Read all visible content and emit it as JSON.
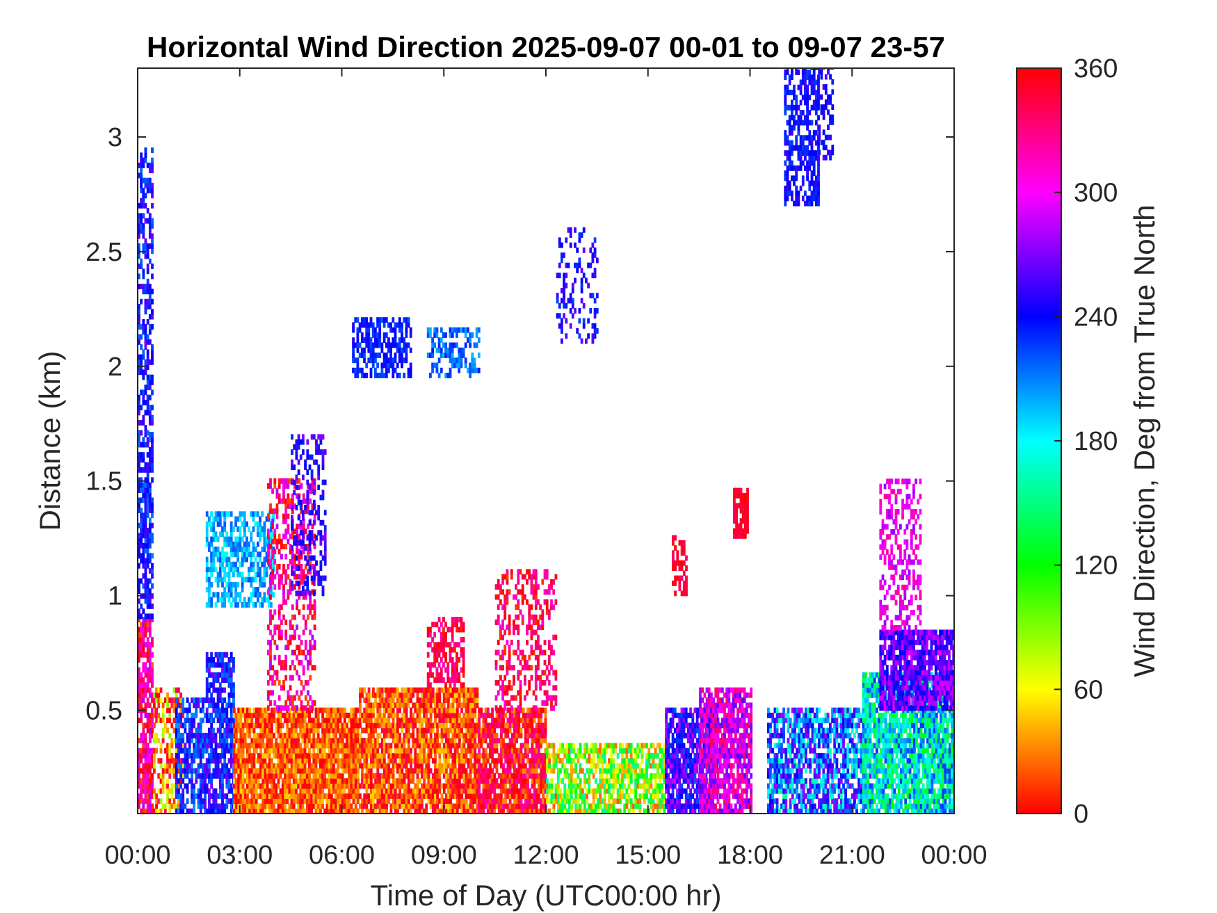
{
  "chart_data": {
    "type": "heatmap",
    "title": "Horizontal Wind Direction 2025-09-07 00-01 to 09-07 23-57",
    "xlabel": "Time of Day (UTC00:00 hr)",
    "ylabel": "Distance (km)",
    "colorbar_label": "Wind Direction, Deg from True North",
    "x_ticks": [
      "00:00",
      "03:00",
      "06:00",
      "09:00",
      "12:00",
      "15:00",
      "18:00",
      "21:00",
      "00:00"
    ],
    "y_ticks": [
      "0.5",
      "1",
      "1.5",
      "2",
      "2.5",
      "3"
    ],
    "y_tick_values": [
      0.5,
      1,
      1.5,
      2,
      2.5,
      3
    ],
    "colorbar_ticks": [
      "0",
      "60",
      "120",
      "180",
      "240",
      "300",
      "360"
    ],
    "xlim_hours": [
      0,
      24
    ],
    "ylim_km": [
      0.05,
      3.3
    ],
    "clim_deg": [
      0,
      360
    ],
    "colormap": "hsv",
    "grid": false,
    "regions": [
      {
        "t": [
          0.0,
          0.45
        ],
        "h": [
          0.05,
          0.9
        ],
        "dir": 330,
        "spread": 50,
        "density": 0.8
      },
      {
        "t": [
          0.0,
          0.45
        ],
        "h": [
          0.9,
          1.7
        ],
        "dir": 235,
        "spread": 25,
        "density": 0.7
      },
      {
        "t": [
          0.0,
          0.45
        ],
        "h": [
          1.7,
          2.95
        ],
        "dir": 240,
        "spread": 25,
        "density": 0.55
      },
      {
        "t": [
          0.45,
          1.3
        ],
        "h": [
          0.05,
          0.6
        ],
        "dir": 30,
        "spread": 60,
        "density": 0.55
      },
      {
        "t": [
          1.1,
          2.0
        ],
        "h": [
          0.05,
          0.55
        ],
        "dir": 235,
        "spread": 30,
        "density": 0.75
      },
      {
        "t": [
          2.0,
          2.8
        ],
        "h": [
          0.05,
          0.75
        ],
        "dir": 240,
        "spread": 30,
        "density": 0.7
      },
      {
        "t": [
          2.0,
          4.0
        ],
        "h": [
          0.95,
          1.35
        ],
        "dir": 200,
        "spread": 25,
        "density": 0.6
      },
      {
        "t": [
          2.8,
          6.5
        ],
        "h": [
          0.05,
          0.5
        ],
        "dir": 20,
        "spread": 30,
        "density": 0.9
      },
      {
        "t": [
          3.8,
          5.2
        ],
        "h": [
          0.5,
          1.5
        ],
        "dir": 330,
        "spread": 50,
        "density": 0.4
      },
      {
        "t": [
          4.5,
          5.5
        ],
        "h": [
          1.0,
          1.7
        ],
        "dir": 250,
        "spread": 20,
        "density": 0.35
      },
      {
        "t": [
          6.5,
          10.0
        ],
        "h": [
          0.05,
          0.6
        ],
        "dir": 15,
        "spread": 35,
        "density": 0.85
      },
      {
        "t": [
          8.5,
          9.6
        ],
        "h": [
          0.6,
          0.9
        ],
        "dir": 340,
        "spread": 30,
        "density": 0.6
      },
      {
        "t": [
          10.0,
          12.0
        ],
        "h": [
          0.05,
          0.5
        ],
        "dir": 355,
        "spread": 40,
        "density": 0.85
      },
      {
        "t": [
          10.5,
          12.3
        ],
        "h": [
          0.5,
          1.1
        ],
        "dir": 340,
        "spread": 35,
        "density": 0.35
      },
      {
        "t": [
          6.3,
          8.0
        ],
        "h": [
          1.95,
          2.2
        ],
        "dir": 235,
        "spread": 15,
        "density": 0.6
      },
      {
        "t": [
          8.5,
          10.0
        ],
        "h": [
          1.95,
          2.15
        ],
        "dir": 215,
        "spread": 20,
        "density": 0.5
      },
      {
        "t": [
          12.0,
          15.5
        ],
        "h": [
          0.05,
          0.35
        ],
        "dir": 90,
        "spread": 70,
        "density": 0.7
      },
      {
        "t": [
          12.3,
          13.5
        ],
        "h": [
          2.1,
          2.6
        ],
        "dir": 245,
        "spread": 20,
        "density": 0.25
      },
      {
        "t": [
          15.5,
          17.0
        ],
        "h": [
          0.05,
          0.5
        ],
        "dir": 255,
        "spread": 35,
        "density": 0.8
      },
      {
        "t": [
          16.5,
          18.0
        ],
        "h": [
          0.05,
          0.6
        ],
        "dir": 300,
        "spread": 40,
        "density": 0.8
      },
      {
        "t": [
          17.5,
          17.95
        ],
        "h": [
          1.25,
          1.45
        ],
        "dir": 350,
        "spread": 10,
        "density": 0.8
      },
      {
        "t": [
          15.7,
          16.1
        ],
        "h": [
          1.0,
          1.25
        ],
        "dir": 350,
        "spread": 15,
        "density": 0.5
      },
      {
        "t": [
          18.5,
          21.5
        ],
        "h": [
          0.05,
          0.5
        ],
        "dir": 220,
        "spread": 60,
        "density": 0.75
      },
      {
        "t": [
          19.0,
          20.0
        ],
        "h": [
          2.7,
          3.3
        ],
        "dir": 240,
        "spread": 15,
        "density": 0.6
      },
      {
        "t": [
          20.0,
          20.4
        ],
        "h": [
          2.9,
          3.3
        ],
        "dir": 245,
        "spread": 15,
        "density": 0.45
      },
      {
        "t": [
          21.3,
          24.0
        ],
        "h": [
          0.05,
          0.65
        ],
        "dir": 175,
        "spread": 55,
        "density": 0.85
      },
      {
        "t": [
          21.8,
          24.0
        ],
        "h": [
          0.5,
          0.85
        ],
        "dir": 265,
        "spread": 30,
        "density": 0.85
      },
      {
        "t": [
          21.8,
          23.0
        ],
        "h": [
          0.85,
          1.5
        ],
        "dir": 300,
        "spread": 25,
        "density": 0.45
      },
      {
        "t": [
          17.5,
          17.9
        ],
        "h": [
          0.05,
          3.3
        ],
        "dir": 0,
        "spread": 0,
        "density": 0.0
      }
    ]
  }
}
